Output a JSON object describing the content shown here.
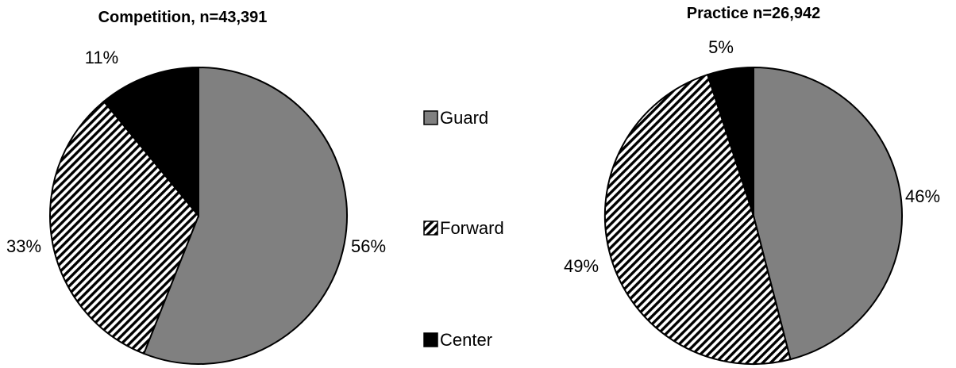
{
  "chart_data": [
    {
      "type": "pie",
      "title": "Competition, n=43,391",
      "categories": [
        "Guard",
        "Forward",
        "Center"
      ],
      "values": [
        56,
        33,
        11
      ],
      "labels": [
        "56%",
        "33%",
        "11%"
      ]
    },
    {
      "type": "pie",
      "title": "Practice n=26,942",
      "categories": [
        "Guard",
        "Forward",
        "Center"
      ],
      "values": [
        46,
        49,
        5
      ],
      "labels": [
        "46%",
        "49%",
        "5%"
      ]
    }
  ],
  "legend": {
    "placement": "center",
    "items": [
      {
        "label": "Guard",
        "fill": "#808080",
        "pattern": "solid"
      },
      {
        "label": "Forward",
        "fill": "#ffffff",
        "pattern": "diagonal-hatch"
      },
      {
        "label": "Center",
        "fill": "#000000",
        "pattern": "solid"
      }
    ]
  },
  "colors": {
    "guard": "#808080",
    "forward_hatch": "#000000",
    "center": "#000000",
    "outline": "#000000"
  }
}
